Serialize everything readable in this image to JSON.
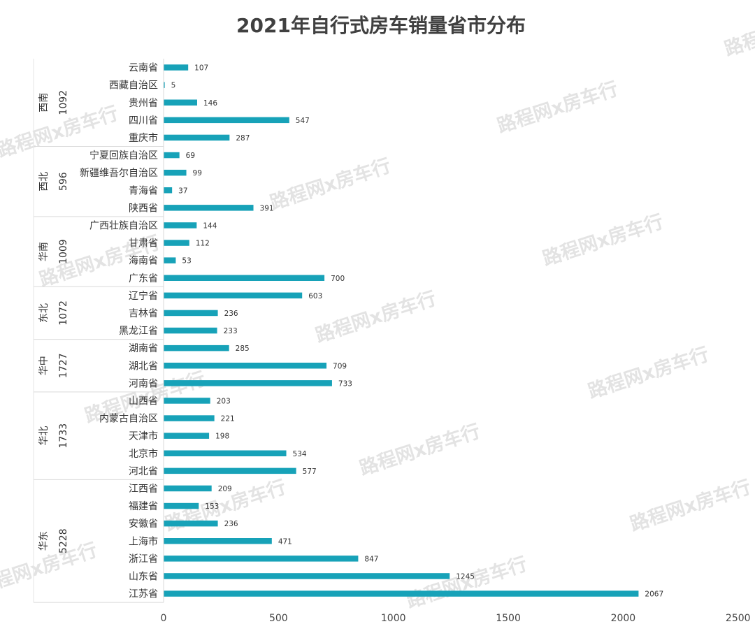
{
  "chart_data": {
    "type": "bar",
    "orientation": "horizontal",
    "title": "2021年自行式房车销量省市分布",
    "xlim": [
      0,
      2500
    ],
    "xticks": [
      0,
      500,
      1000,
      1500,
      2000,
      2500
    ],
    "grid": false,
    "bar_color": "#17a2b8",
    "watermark": "路程网x房车行",
    "groups": [
      {
        "region": "西南",
        "total": "1092",
        "items": [
          {
            "name": "云南省",
            "value": 107
          },
          {
            "name": "西藏自治区",
            "value": 5
          },
          {
            "name": "贵州省",
            "value": 146
          },
          {
            "name": "四川省",
            "value": 547
          },
          {
            "name": "重庆市",
            "value": 287
          }
        ]
      },
      {
        "region": "西北",
        "total": "596",
        "items": [
          {
            "name": "宁夏回族自治区",
            "value": 69
          },
          {
            "name": "新疆维吾尔自治区",
            "value": 99
          },
          {
            "name": "青海省",
            "value": 37
          },
          {
            "name": "陕西省",
            "value": 391
          }
        ]
      },
      {
        "region": "华南",
        "total": "1009",
        "items": [
          {
            "name": "广西壮族自治区",
            "value": 144
          },
          {
            "name": "甘肃省",
            "value": 112
          },
          {
            "name": "海南省",
            "value": 53
          },
          {
            "name": "广东省",
            "value": 700
          }
        ]
      },
      {
        "region": "东北",
        "total": "1072",
        "items": [
          {
            "name": "辽宁省",
            "value": 603
          },
          {
            "name": "吉林省",
            "value": 236
          },
          {
            "name": "黑龙江省",
            "value": 233
          }
        ]
      },
      {
        "region": "华中",
        "total": "1727",
        "items": [
          {
            "name": "湖南省",
            "value": 285
          },
          {
            "name": "湖北省",
            "value": 709
          },
          {
            "name": "河南省",
            "value": 733
          }
        ]
      },
      {
        "region": "华北",
        "total": "1733",
        "items": [
          {
            "name": "山西省",
            "value": 203
          },
          {
            "name": "内蒙古自治区",
            "value": 221
          },
          {
            "name": "天津市",
            "value": 198
          },
          {
            "name": "北京市",
            "value": 534
          },
          {
            "name": "河北省",
            "value": 577
          }
        ]
      },
      {
        "region": "华东",
        "total": "5228",
        "items": [
          {
            "name": "江西省",
            "value": 209
          },
          {
            "name": "福建省",
            "value": 153
          },
          {
            "name": "安徽省",
            "value": 236
          },
          {
            "name": "上海市",
            "value": 471
          },
          {
            "name": "浙江省",
            "value": 847
          },
          {
            "name": "山东省",
            "value": 1245
          },
          {
            "name": "江苏省",
            "value": 2067
          }
        ]
      }
    ]
  }
}
